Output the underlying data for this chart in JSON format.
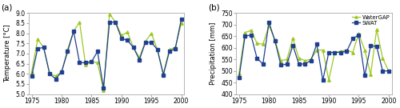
{
  "years": [
    1975,
    1976,
    1977,
    1978,
    1979,
    1980,
    1981,
    1982,
    1983,
    1984,
    1985,
    1986,
    1987,
    1988,
    1989,
    1990,
    1991,
    1992,
    1993,
    1994,
    1995,
    1996,
    1997,
    1998,
    1999,
    2000
  ],
  "temp_watergap": [
    6.1,
    7.7,
    7.3,
    6.0,
    5.9,
    6.1,
    7.2,
    8.1,
    8.55,
    6.45,
    6.6,
    6.55,
    5.2,
    8.95,
    8.55,
    7.9,
    8.05,
    7.3,
    6.8,
    7.6,
    8.0,
    7.2,
    6.0,
    7.2,
    7.3,
    8.5
  ],
  "temp_swat": [
    5.9,
    7.25,
    7.3,
    6.0,
    5.75,
    6.1,
    7.1,
    8.1,
    6.55,
    6.55,
    6.6,
    7.1,
    5.3,
    8.55,
    8.55,
    7.75,
    7.65,
    7.3,
    6.7,
    7.55,
    7.55,
    7.2,
    5.95,
    7.1,
    7.25,
    8.7
  ],
  "precip_watergap": [
    490,
    665,
    675,
    620,
    615,
    695,
    635,
    545,
    550,
    640,
    555,
    545,
    550,
    590,
    590,
    460,
    580,
    585,
    590,
    580,
    660,
    590,
    485,
    680,
    555,
    500
  ],
  "precip_swat": [
    470,
    650,
    655,
    555,
    530,
    710,
    630,
    525,
    530,
    610,
    530,
    530,
    545,
    615,
    460,
    580,
    580,
    580,
    585,
    640,
    655,
    480,
    610,
    605,
    500,
    500
  ],
  "temp_ylim": [
    5.0,
    9.0
  ],
  "temp_yticks": [
    5.0,
    5.5,
    6.0,
    6.5,
    7.0,
    7.5,
    8.0,
    8.5,
    9.0
  ],
  "precip_ylim": [
    400,
    750
  ],
  "precip_yticks": [
    400,
    450,
    500,
    550,
    600,
    650,
    700,
    750
  ],
  "xlim": [
    1974.5,
    2000.5
  ],
  "xticks": [
    1975,
    1980,
    1985,
    1990,
    1995,
    2000
  ],
  "color_watergap": "#9DC822",
  "color_swat": "#1F3F8F",
  "label_watergap": "WaterGAP",
  "label_swat": "SWAT",
  "marker_watergap": "^",
  "marker_swat": "s",
  "markersize": 2.5,
  "linewidth": 0.9,
  "ylabel_temp": "Temperature [°C]",
  "ylabel_precip": "Precipitation [mm]",
  "panel_a": "(a)",
  "panel_b": "(b)",
  "bg_color": "#ffffff",
  "spine_color": "#aaaaaa",
  "tick_label_size": 5.5,
  "ylabel_fontsize": 6.0,
  "panel_fontsize": 7.5
}
